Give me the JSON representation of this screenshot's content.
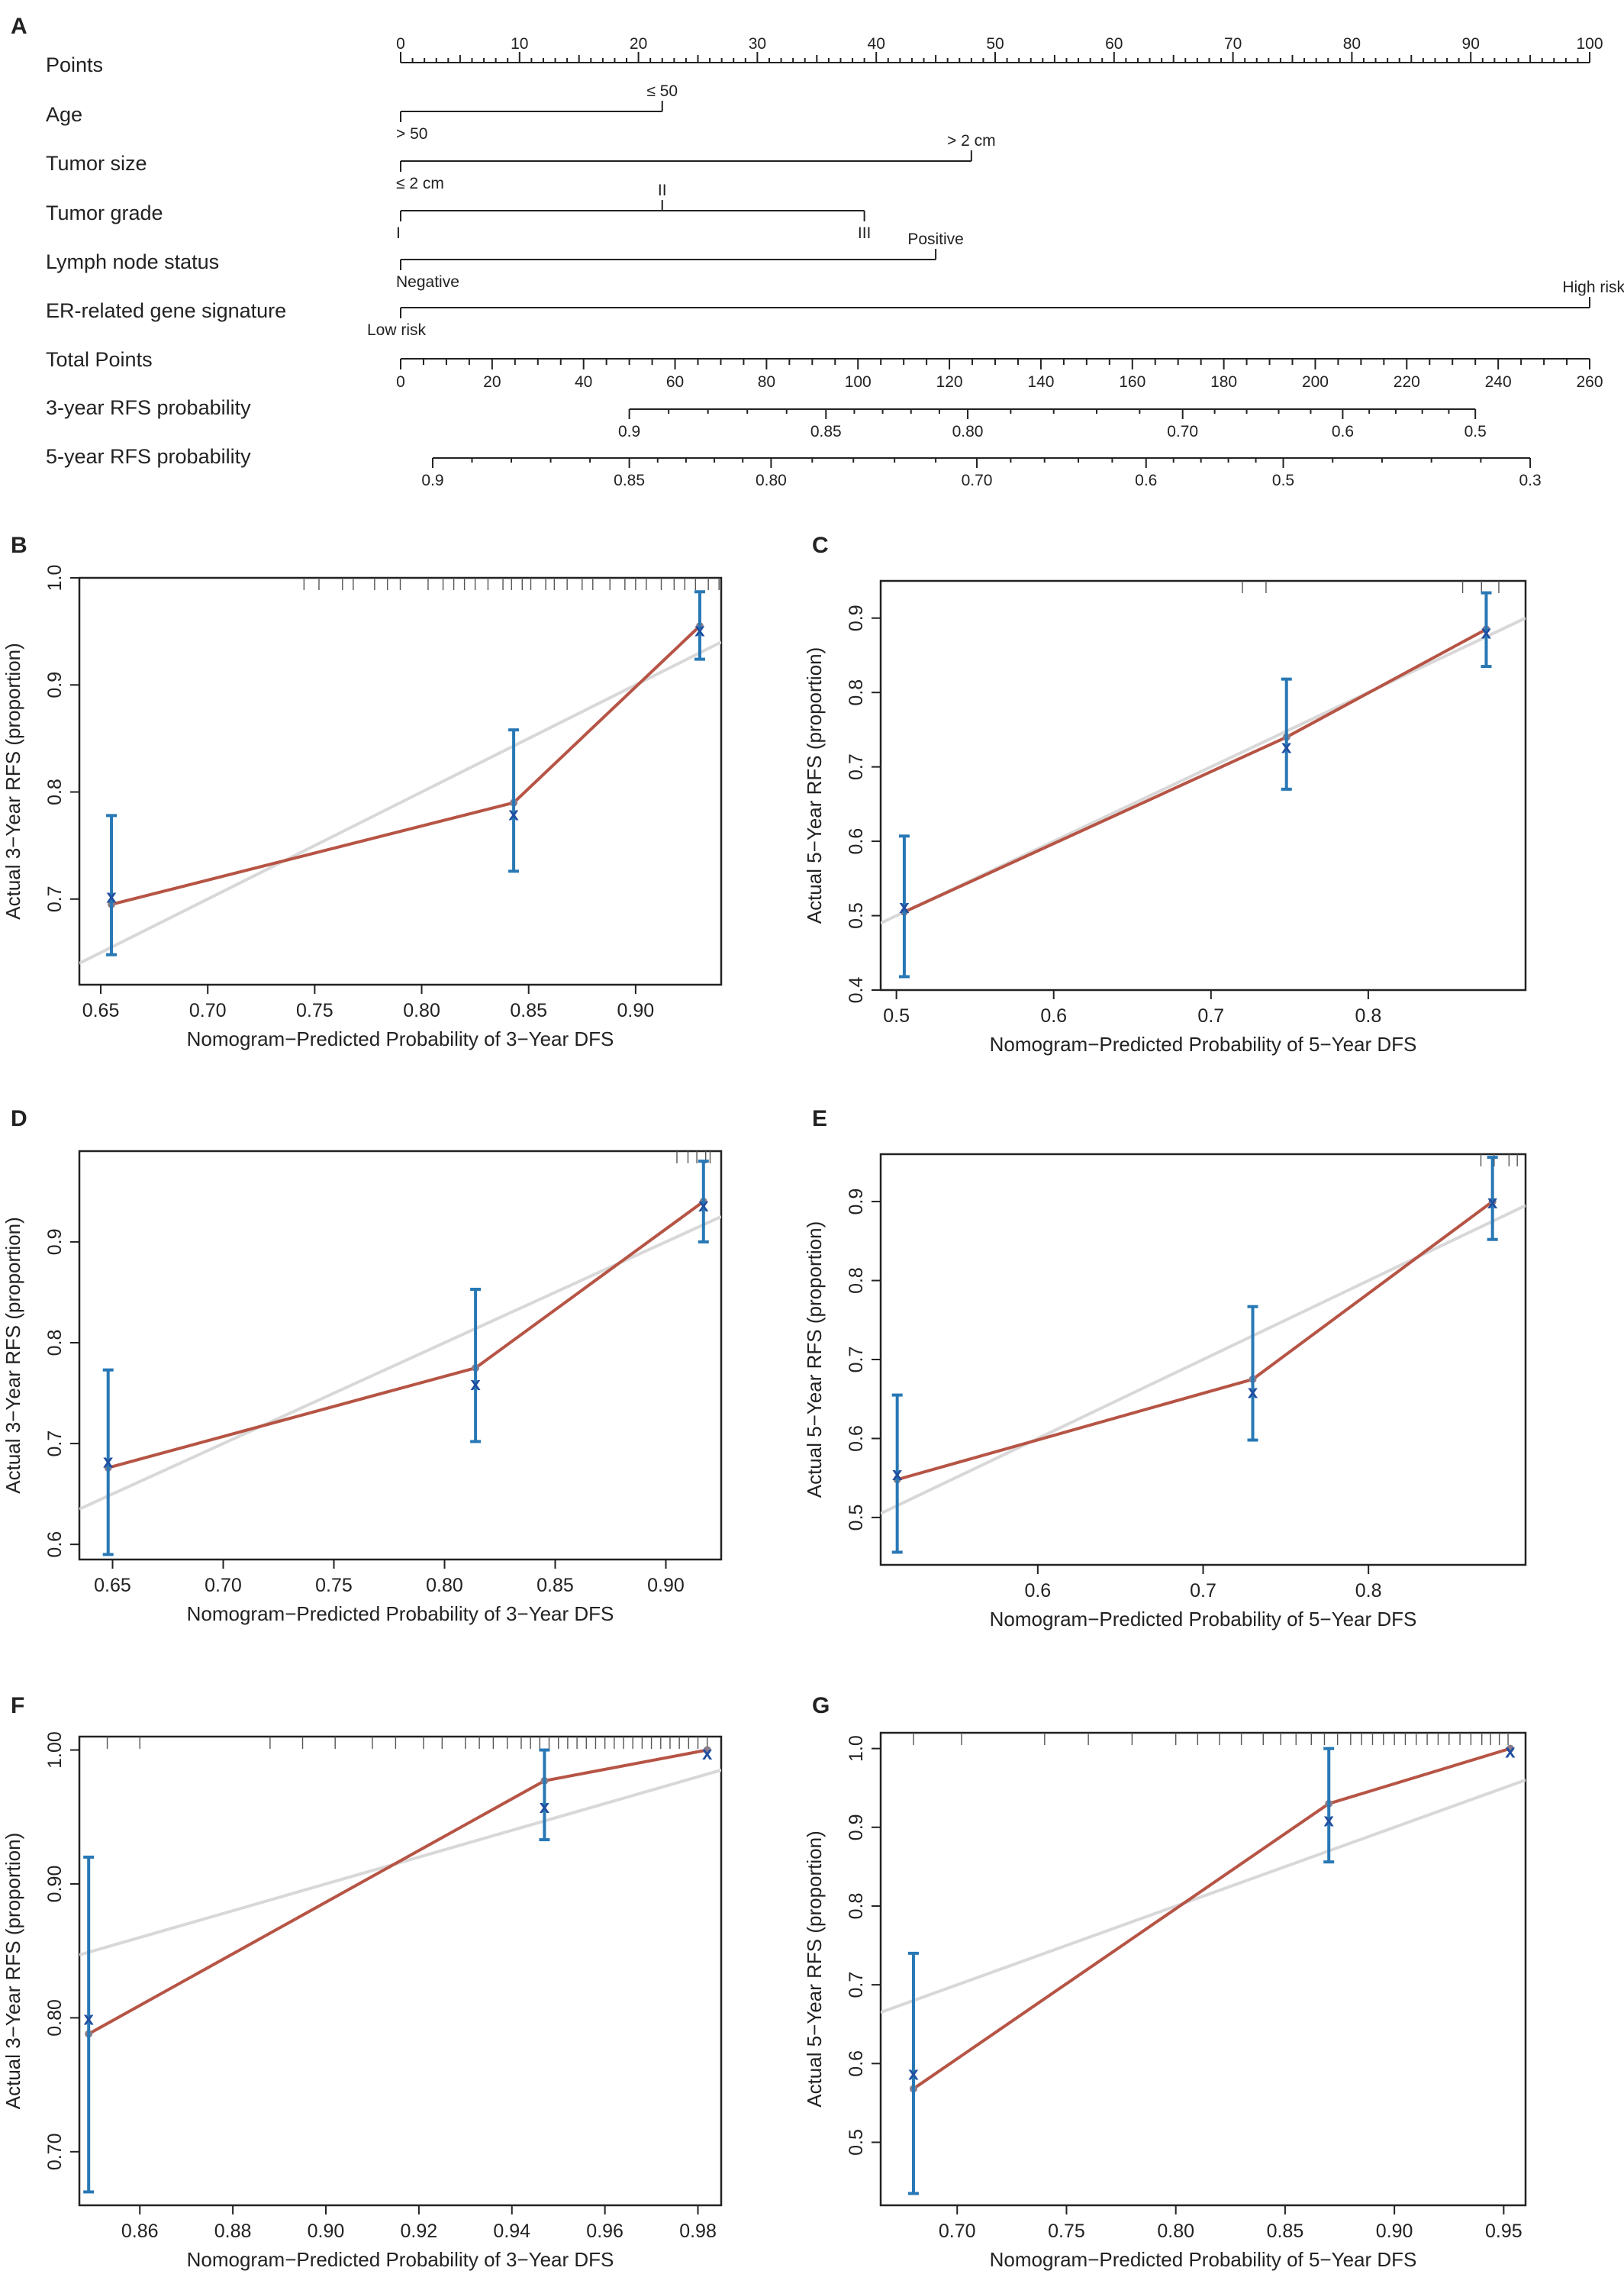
{
  "panel_letters": [
    "A",
    "B",
    "C",
    "D",
    "E",
    "F",
    "G"
  ],
  "nomogram": {
    "points_ticks": [
      "0",
      "10",
      "20",
      "30",
      "40",
      "50",
      "60",
      "70",
      "80",
      "90",
      "100"
    ],
    "rows": [
      {
        "label": "Points"
      },
      {
        "label": "Age",
        "levels": [
          {
            "name": "> 50",
            "points": 0,
            "pos": "below"
          },
          {
            "name": "≤ 50",
            "points": 22,
            "pos": "above"
          }
        ]
      },
      {
        "label": "Tumor size",
        "levels": [
          {
            "name": "≤ 2 cm",
            "points": 0,
            "pos": "below"
          },
          {
            "name": "> 2 cm",
            "points": 48,
            "pos": "above"
          }
        ]
      },
      {
        "label": "Tumor grade",
        "levels": [
          {
            "name": "I",
            "points": 0,
            "pos": "below"
          },
          {
            "name": "II",
            "points": 22,
            "pos": "above"
          },
          {
            "name": "III",
            "points": 39,
            "pos": "below"
          }
        ]
      },
      {
        "label": "Lymph node status",
        "levels": [
          {
            "name": "Negative",
            "points": 0,
            "pos": "below"
          },
          {
            "name": "Positive",
            "points": 45,
            "pos": "above"
          }
        ]
      },
      {
        "label": "ER-related gene signature",
        "levels": [
          {
            "name": "Low risk",
            "points": 0,
            "pos": "below"
          },
          {
            "name": "High risk",
            "points": 100,
            "pos": "above"
          }
        ]
      },
      {
        "label": "Total Points"
      },
      {
        "label": "3-year RFS probability"
      },
      {
        "label": "5-year RFS probability"
      }
    ],
    "total_ticks": [
      "0",
      "20",
      "40",
      "60",
      "80",
      "100",
      "120",
      "140",
      "160",
      "180",
      "200",
      "220",
      "240",
      "260"
    ],
    "rfs3": [
      {
        "label": "0.9",
        "total": 50
      },
      {
        "label": "0.85",
        "total": 93
      },
      {
        "label": "0.80",
        "total": 124
      },
      {
        "label": "0.70",
        "total": 171
      },
      {
        "label": "0.6",
        "total": 206
      },
      {
        "label": "0.5",
        "total": 235
      }
    ],
    "rfs5": [
      {
        "label": "0.9",
        "total": 7
      },
      {
        "label": "0.85",
        "total": 50
      },
      {
        "label": "0.80",
        "total": 81
      },
      {
        "label": "0.70",
        "total": 126
      },
      {
        "label": "0.6",
        "total": 163
      },
      {
        "label": "0.5",
        "total": 193
      },
      {
        "label": "0.3",
        "total": 247
      }
    ]
  },
  "chart_data": [
    {
      "panel": "B",
      "type": "line",
      "xlabel": "Nomogram−Predicted Probability of 3−Year DFS",
      "ylabel": "Actual 3−Year RFS (proportion)",
      "xlim": [
        0.64,
        0.94
      ],
      "ylim": [
        0.62,
        1.0
      ],
      "xticks": [
        "0.65",
        "0.70",
        "0.75",
        "0.80",
        "0.85",
        "0.90"
      ],
      "yticks": [
        "0.7",
        "0.8",
        "0.9",
        "1.0"
      ],
      "ideal": [
        [
          0.64,
          0.64
        ],
        [
          0.94,
          0.94
        ]
      ],
      "apparent": [
        [
          0.655,
          0.695
        ],
        [
          0.843,
          0.79
        ],
        [
          0.93,
          0.955
        ]
      ],
      "observed": [
        {
          "x": 0.655,
          "y": 0.703,
          "lo": 0.648,
          "hi": 0.778
        },
        {
          "x": 0.843,
          "y": 0.78,
          "lo": 0.726,
          "hi": 0.858
        },
        {
          "x": 0.93,
          "y": 0.952,
          "lo": 0.924,
          "hi": 0.987
        }
      ],
      "rug": [
        0.745,
        0.752,
        0.763,
        0.768,
        0.778,
        0.784,
        0.79,
        0.803,
        0.81,
        0.815,
        0.82,
        0.825,
        0.831,
        0.838,
        0.842,
        0.847,
        0.851,
        0.858,
        0.862,
        0.868,
        0.875,
        0.88,
        0.888,
        0.895,
        0.9,
        0.905,
        0.912,
        0.918,
        0.923,
        0.928,
        0.934,
        0.939
      ]
    },
    {
      "panel": "C",
      "type": "line",
      "xlabel": "Nomogram−Predicted Probability of 5−Year DFS",
      "ylabel": "Actual 5−Year RFS (proportion)",
      "xlim": [
        0.49,
        0.9
      ],
      "ylim": [
        0.4,
        0.95
      ],
      "xticks": [
        "0.5",
        "0.6",
        "0.7",
        "0.8"
      ],
      "yticks": [
        "0.4",
        "0.5",
        "0.6",
        "0.7",
        "0.8",
        "0.9"
      ],
      "ideal": [
        [
          0.49,
          0.49
        ],
        [
          0.9,
          0.9
        ]
      ],
      "apparent": [
        [
          0.505,
          0.505
        ],
        [
          0.748,
          0.74
        ],
        [
          0.875,
          0.885
        ]
      ],
      "observed": [
        {
          "x": 0.505,
          "y": 0.513,
          "lo": 0.418,
          "hi": 0.607
        },
        {
          "x": 0.748,
          "y": 0.728,
          "lo": 0.67,
          "hi": 0.818
        },
        {
          "x": 0.875,
          "y": 0.882,
          "lo": 0.835,
          "hi": 0.934
        }
      ],
      "rug": [
        0.72,
        0.735,
        0.86,
        0.872,
        0.883
      ]
    },
    {
      "panel": "D",
      "type": "line",
      "xlabel": "Nomogram−Predicted Probability of 3−Year DFS",
      "ylabel": "Actual 3−Year RFS (proportion)",
      "xlim": [
        0.635,
        0.925
      ],
      "ylim": [
        0.585,
        0.99
      ],
      "xticks": [
        "0.65",
        "0.70",
        "0.75",
        "0.80",
        "0.85",
        "0.90"
      ],
      "yticks": [
        "0.6",
        "0.7",
        "0.8",
        "0.9"
      ],
      "ideal": [
        [
          0.635,
          0.635
        ],
        [
          0.925,
          0.925
        ]
      ],
      "apparent": [
        [
          0.648,
          0.676
        ],
        [
          0.814,
          0.775
        ],
        [
          0.917,
          0.94
        ]
      ],
      "observed": [
        {
          "x": 0.648,
          "y": 0.683,
          "lo": 0.59,
          "hi": 0.773
        },
        {
          "x": 0.814,
          "y": 0.76,
          "lo": 0.702,
          "hi": 0.853
        },
        {
          "x": 0.917,
          "y": 0.937,
          "lo": 0.9,
          "hi": 0.98
        }
      ],
      "rug": [
        0.905,
        0.91,
        0.914,
        0.918,
        0.92
      ]
    },
    {
      "panel": "E",
      "type": "line",
      "xlabel": "Nomogram−Predicted Probability of 5−Year DFS",
      "ylabel": "Actual 5−Year RFS (proportion)",
      "xlim": [
        0.505,
        0.895
      ],
      "ylim": [
        0.44,
        0.96
      ],
      "xticks": [
        "0.6",
        "0.7",
        "0.8"
      ],
      "yticks": [
        "0.5",
        "0.6",
        "0.7",
        "0.8",
        "0.9"
      ],
      "ideal": [
        [
          0.505,
          0.505
        ],
        [
          0.895,
          0.895
        ]
      ],
      "apparent": [
        [
          0.515,
          0.548
        ],
        [
          0.73,
          0.675
        ],
        [
          0.875,
          0.9
        ]
      ],
      "observed": [
        {
          "x": 0.515,
          "y": 0.556,
          "lo": 0.456,
          "hi": 0.655
        },
        {
          "x": 0.73,
          "y": 0.66,
          "lo": 0.598,
          "hi": 0.767
        },
        {
          "x": 0.875,
          "y": 0.9,
          "lo": 0.852,
          "hi": 0.956
        }
      ],
      "rug": [
        0.868,
        0.876,
        0.885,
        0.89
      ]
    },
    {
      "panel": "F",
      "type": "line",
      "xlabel": "Nomogram−Predicted Probability of 3−Year DFS",
      "ylabel": "Actual 3−Year RFS (proportion)",
      "xlim": [
        0.847,
        0.985
      ],
      "ylim": [
        0.66,
        1.01
      ],
      "xticks": [
        "0.86",
        "0.88",
        "0.90",
        "0.92",
        "0.94",
        "0.96",
        "0.98"
      ],
      "yticks": [
        "0.70",
        "0.80",
        "0.90",
        "1.00"
      ],
      "ideal": [
        [
          0.847,
          0.847
        ],
        [
          0.985,
          0.985
        ]
      ],
      "apparent": [
        [
          0.849,
          0.788
        ],
        [
          0.947,
          0.977
        ],
        [
          0.982,
          1.0
        ]
      ],
      "observed": [
        {
          "x": 0.849,
          "y": 0.8,
          "lo": 0.67,
          "hi": 0.92
        },
        {
          "x": 0.947,
          "y": 0.958,
          "lo": 0.933,
          "hi": 1.0
        },
        {
          "x": 0.982,
          "y": 0.998,
          "lo": 0.998,
          "hi": 0.998
        }
      ],
      "rug": [
        0.853,
        0.86,
        0.888,
        0.895,
        0.902,
        0.91,
        0.915,
        0.921,
        0.925,
        0.93,
        0.933,
        0.936,
        0.939,
        0.942,
        0.944,
        0.946,
        0.948,
        0.95,
        0.952,
        0.954,
        0.956,
        0.958,
        0.96,
        0.962,
        0.964,
        0.966,
        0.968,
        0.97,
        0.972,
        0.974,
        0.976,
        0.978,
        0.98,
        0.982
      ]
    },
    {
      "panel": "G",
      "type": "line",
      "xlabel": "Nomogram−Predicted Probability of 5−Year DFS",
      "ylabel": "Actual 5−Year RFS (proportion)",
      "xlim": [
        0.665,
        0.96
      ],
      "ylim": [
        0.42,
        1.02
      ],
      "xticks": [
        "0.70",
        "0.75",
        "0.80",
        "0.85",
        "0.90",
        "0.95"
      ],
      "yticks": [
        "0.5",
        "0.6",
        "0.7",
        "0.8",
        "0.9",
        "1.0"
      ],
      "ideal": [
        [
          0.665,
          0.665
        ],
        [
          0.96,
          0.96
        ]
      ],
      "apparent": [
        [
          0.68,
          0.568
        ],
        [
          0.87,
          0.93
        ],
        [
          0.953,
          1.0
        ]
      ],
      "observed": [
        {
          "x": 0.68,
          "y": 0.588,
          "lo": 0.435,
          "hi": 0.74
        },
        {
          "x": 0.87,
          "y": 0.91,
          "lo": 0.856,
          "hi": 1.0
        },
        {
          "x": 0.953,
          "y": 0.997,
          "lo": 0.997,
          "hi": 0.997
        }
      ],
      "rug": [
        0.68,
        0.702,
        0.74,
        0.76,
        0.78,
        0.8,
        0.81,
        0.82,
        0.83,
        0.84,
        0.848,
        0.855,
        0.862,
        0.868,
        0.874,
        0.88,
        0.885,
        0.89,
        0.895,
        0.9,
        0.905,
        0.91,
        0.915,
        0.92,
        0.925,
        0.93,
        0.935,
        0.94,
        0.944,
        0.948,
        0.952
      ]
    }
  ]
}
